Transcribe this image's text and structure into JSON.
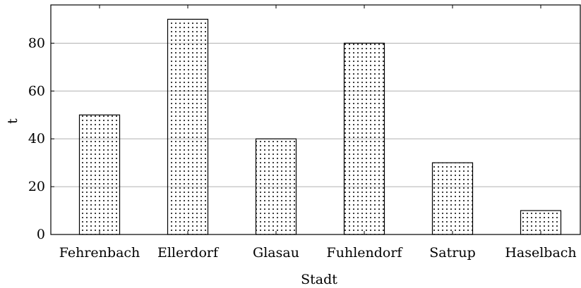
{
  "chart_data": {
    "type": "bar",
    "categories": [
      "Fehrenbach",
      "Ellerdorf",
      "Glasau",
      "Fuhlendorf",
      "Satrup",
      "Haselbach"
    ],
    "values": [
      50,
      90,
      40,
      80,
      30,
      10
    ],
    "title": "",
    "xlabel": "Stadt",
    "ylabel": "t",
    "ylim": [
      0,
      96
    ],
    "yticks": [
      0,
      20,
      40,
      60,
      80
    ],
    "grid": "horizontal",
    "bar_fill": "dotted",
    "colors": {
      "bar_stroke": "#000000",
      "dot": "#000000",
      "grid": "#b0b0b0",
      "axis": "#000000"
    }
  }
}
